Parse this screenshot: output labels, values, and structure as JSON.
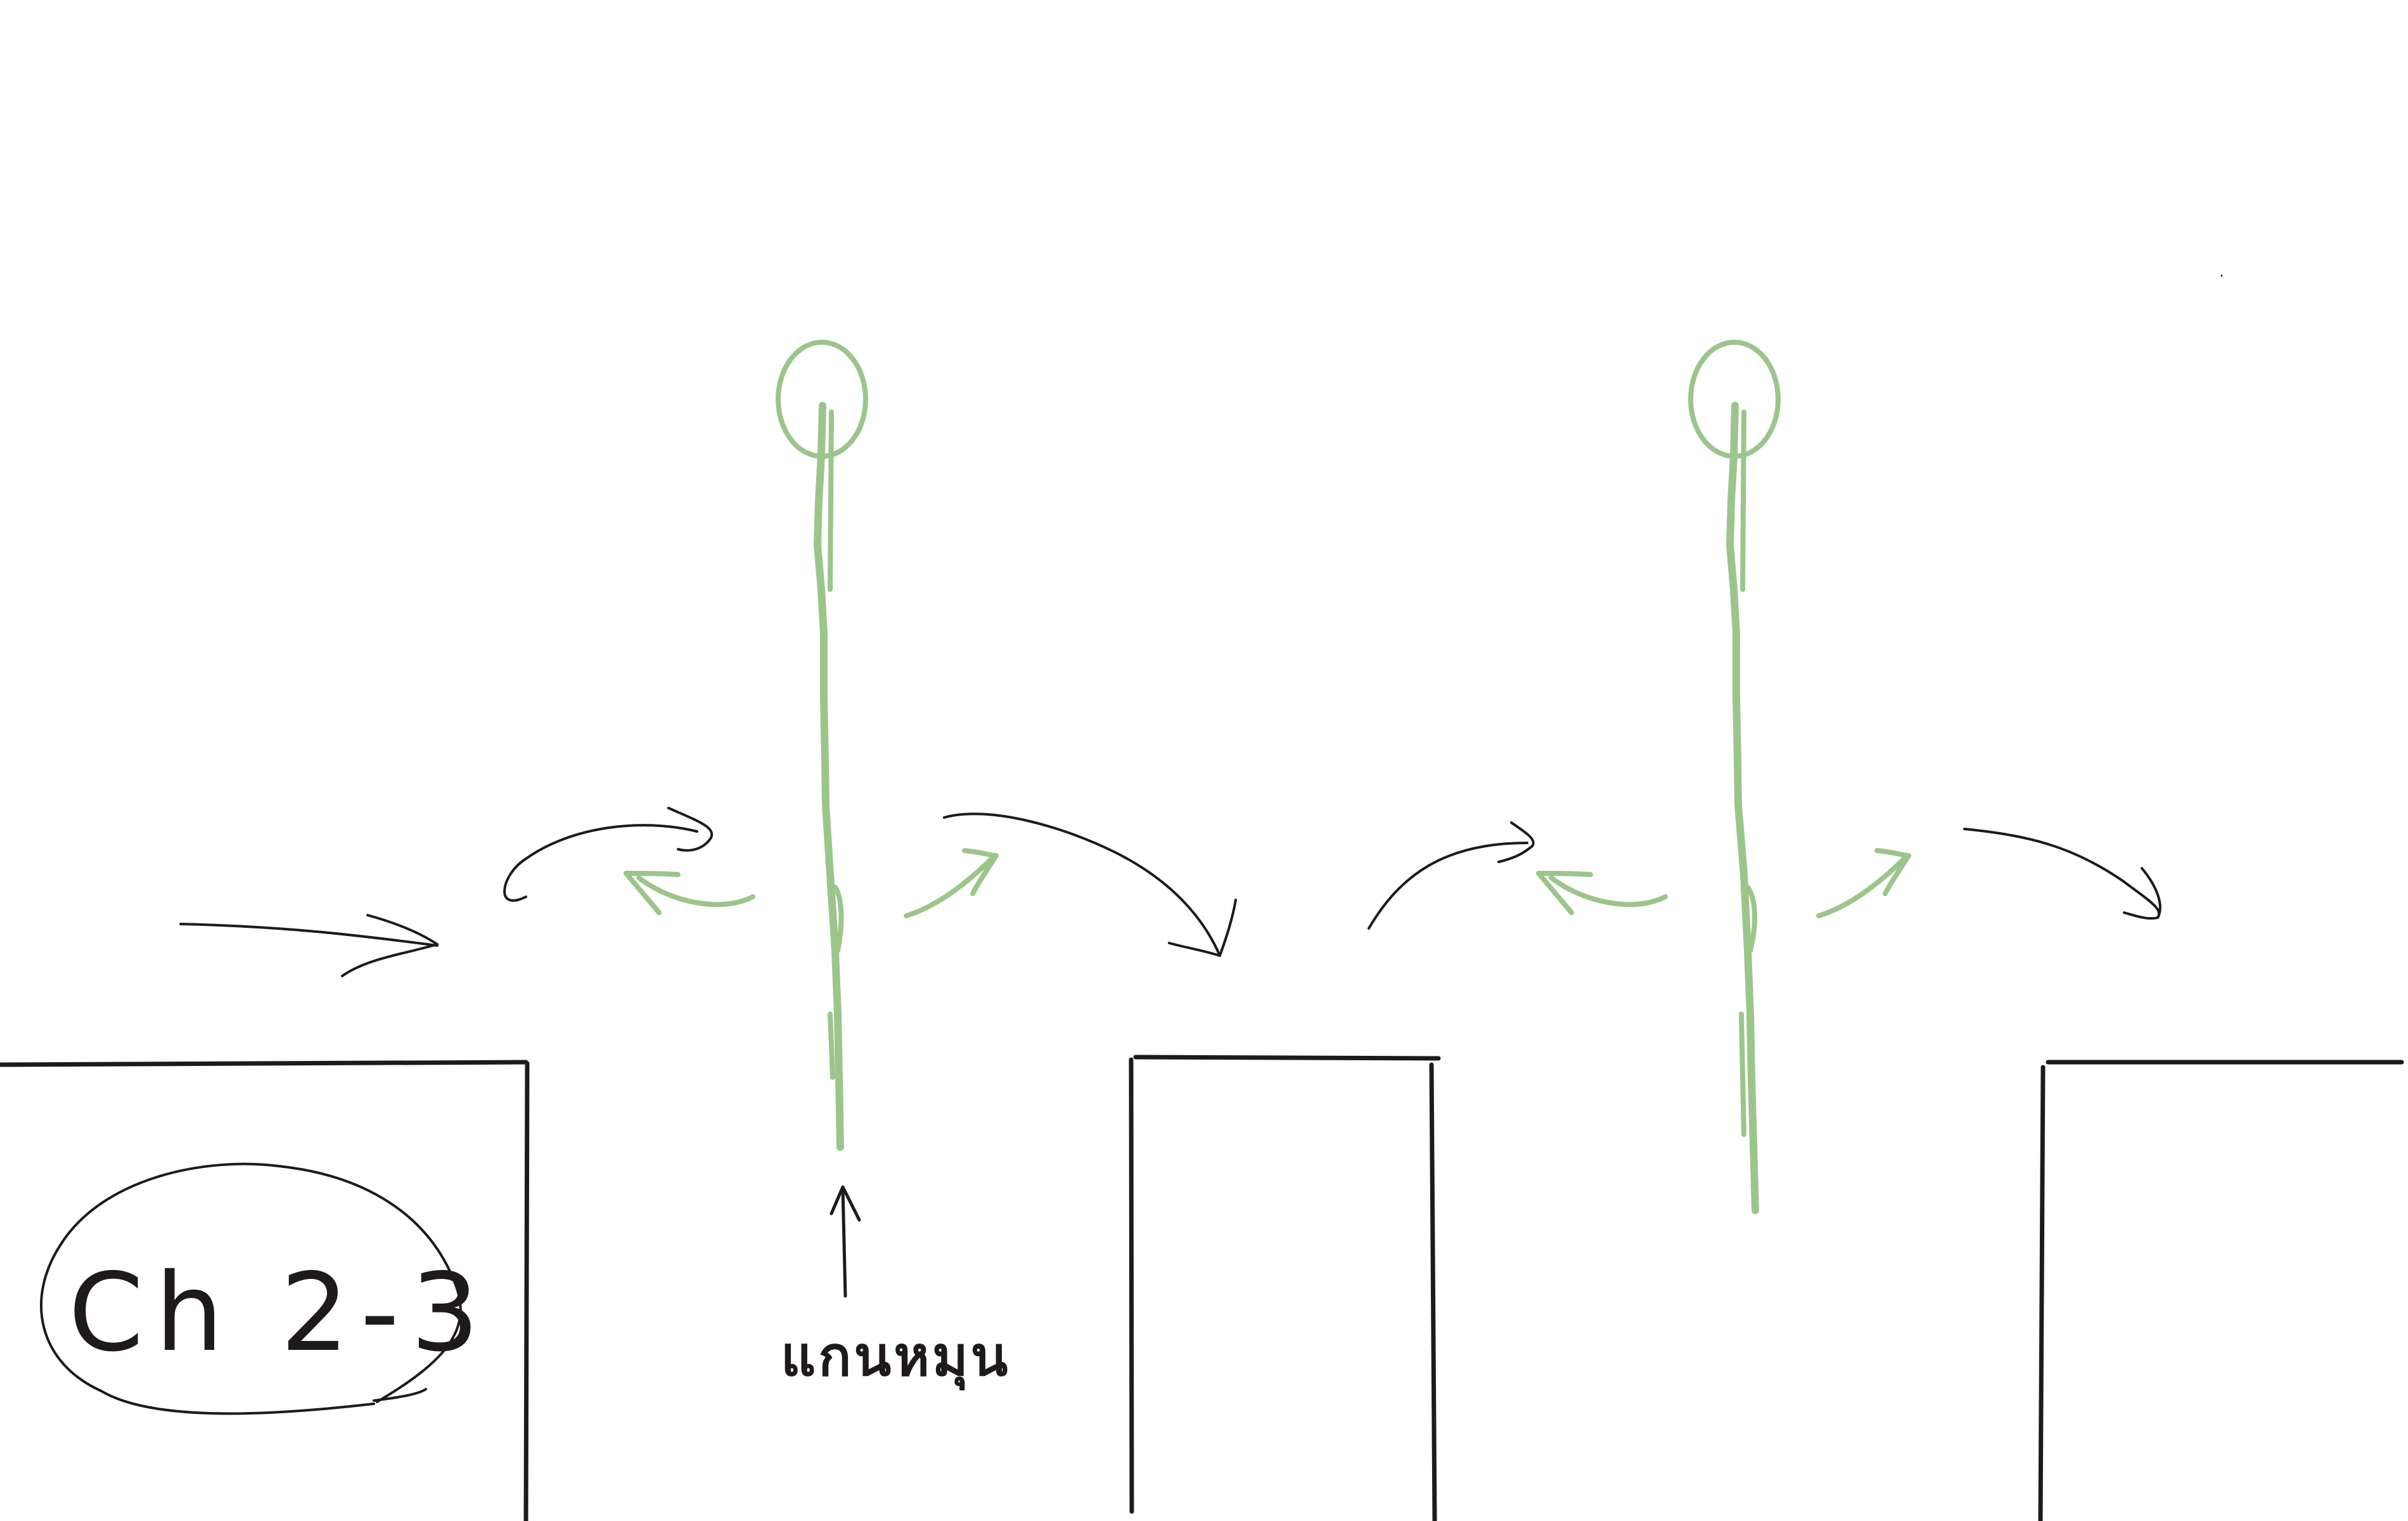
{
  "diagram": {
    "title_label": "Ch 2-3",
    "pointer_label": "แกนหมุน",
    "colors": {
      "ink": "#1f1a1a",
      "pole": "#9cc58c",
      "background": "#ffffff"
    }
  }
}
